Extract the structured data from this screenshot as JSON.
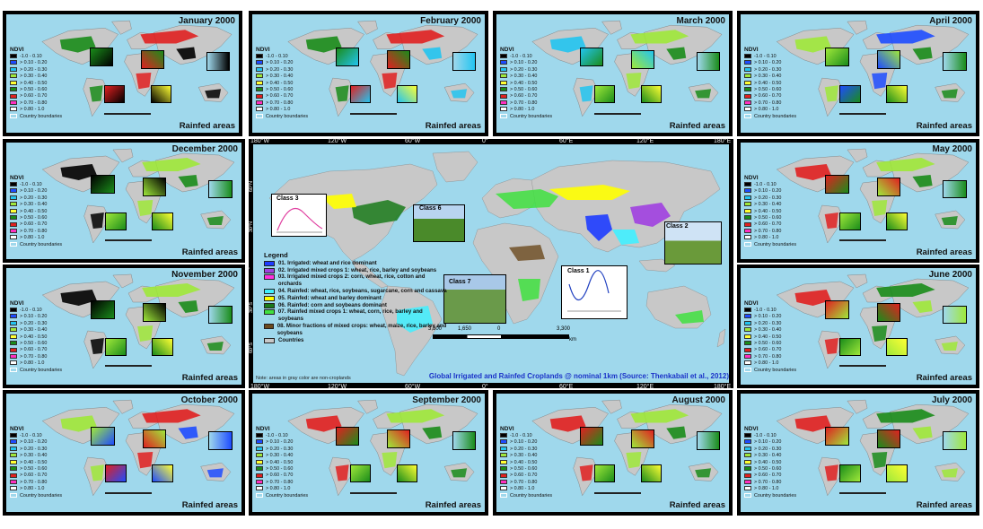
{
  "panels": [
    {
      "id": "jan",
      "title": "January 2000",
      "footer": "Rainfed areas"
    },
    {
      "id": "feb",
      "title": "February 2000",
      "footer": "Rainfed areas"
    },
    {
      "id": "mar",
      "title": "March 2000",
      "footer": "Rainfed areas"
    },
    {
      "id": "apr",
      "title": "April 2000",
      "footer": "Rainfed areas"
    },
    {
      "id": "dec",
      "title": "December 2000",
      "footer": "Rainfed areas"
    },
    {
      "id": "may",
      "title": "May 2000",
      "footer": "Rainfed areas"
    },
    {
      "id": "nov",
      "title": "November 2000",
      "footer": "Rainfed areas"
    },
    {
      "id": "jun",
      "title": "June 2000",
      "footer": "Rainfed areas"
    },
    {
      "id": "oct",
      "title": "October 2000",
      "footer": "Rainfed areas"
    },
    {
      "id": "sep",
      "title": "September 2000",
      "footer": "Rainfed areas"
    },
    {
      "id": "aug",
      "title": "August 2000",
      "footer": "Rainfed areas"
    },
    {
      "id": "jul",
      "title": "July 2000",
      "footer": "Rainfed areas"
    }
  ],
  "ndvi_legend": {
    "title": "NDVI",
    "items": [
      {
        "label": "-1.0 - 0.10",
        "color": "#000000"
      },
      {
        "label": "> 0.10 - 0.20",
        "color": "#1e4cff"
      },
      {
        "label": "> 0.20 - 0.30",
        "color": "#22c4f0"
      },
      {
        "label": "> 0.30 - 0.40",
        "color": "#9fe83a"
      },
      {
        "label": "> 0.40 - 0.50",
        "color": "#ffff33"
      },
      {
        "label": "> 0.50 - 0.60",
        "color": "#1a8c1a"
      },
      {
        "label": "> 0.60 - 0.70",
        "color": "#e02020"
      },
      {
        "label": "> 0.70 - 0.80",
        "color": "#ff30c0"
      },
      {
        "label": "> 0.80 - 1.0",
        "color": "#ffffff"
      }
    ],
    "boundaries_label": "Country boundaries"
  },
  "center": {
    "top_ticks": [
      "180°W",
      "120°W",
      "60°W",
      "0°",
      "60°E",
      "120°E",
      "180°E"
    ],
    "bottom_ticks": [
      "180°W",
      "120°W",
      "60°W",
      "0°",
      "60°E",
      "120°E",
      "180°E"
    ],
    "left_ticks": [
      "60°N",
      "30°N",
      "0°",
      "30°S",
      "60°S"
    ],
    "legend_title": "Legend",
    "classes": [
      {
        "label": "01. Irrigated: wheat and rice dominant",
        "color": "#1e3cff"
      },
      {
        "label": "02. Irrigated mixed crops 1: wheat, rice, barley and soybeans",
        "color": "#a040e0"
      },
      {
        "label": "03. Irrigated mixed crops 2: corn, wheat, rice, cotton and orchards",
        "color": "#ff30e0"
      },
      {
        "label": "04. Rainfed: wheat, rice, soybeans, sugarcane, corn and cassava",
        "color": "#40f0ff"
      },
      {
        "label": "05. Rainfed: wheat and barley dominant",
        "color": "#ffff00"
      },
      {
        "label": "06. Rainfed: corn and soybeans dominant",
        "color": "#1a7a1a"
      },
      {
        "label": "07. Rainfed mixed crops 1: wheat, corn, rice, barley and soybeans",
        "color": "#40e040"
      },
      {
        "label": "08. Minor fractions of mixed crops: wheat, maize, rice, barley and soybeans",
        "color": "#6b4a1e"
      },
      {
        "label": "Countries",
        "color": "#c8c8c8"
      }
    ],
    "class_labels": [
      "Class 3",
      "Class 6",
      "Class 2",
      "Class 7",
      "Class 1"
    ],
    "scale_labels": [
      "3,300",
      "1,650",
      "0",
      "3,300"
    ],
    "scale_unit": "km",
    "note": "Note: areas in gray color are non-croplands",
    "title": "Global Irrigated and Rainfed Croplands @ nominal 1km (Source: Thenkabail et al., 2012)"
  }
}
